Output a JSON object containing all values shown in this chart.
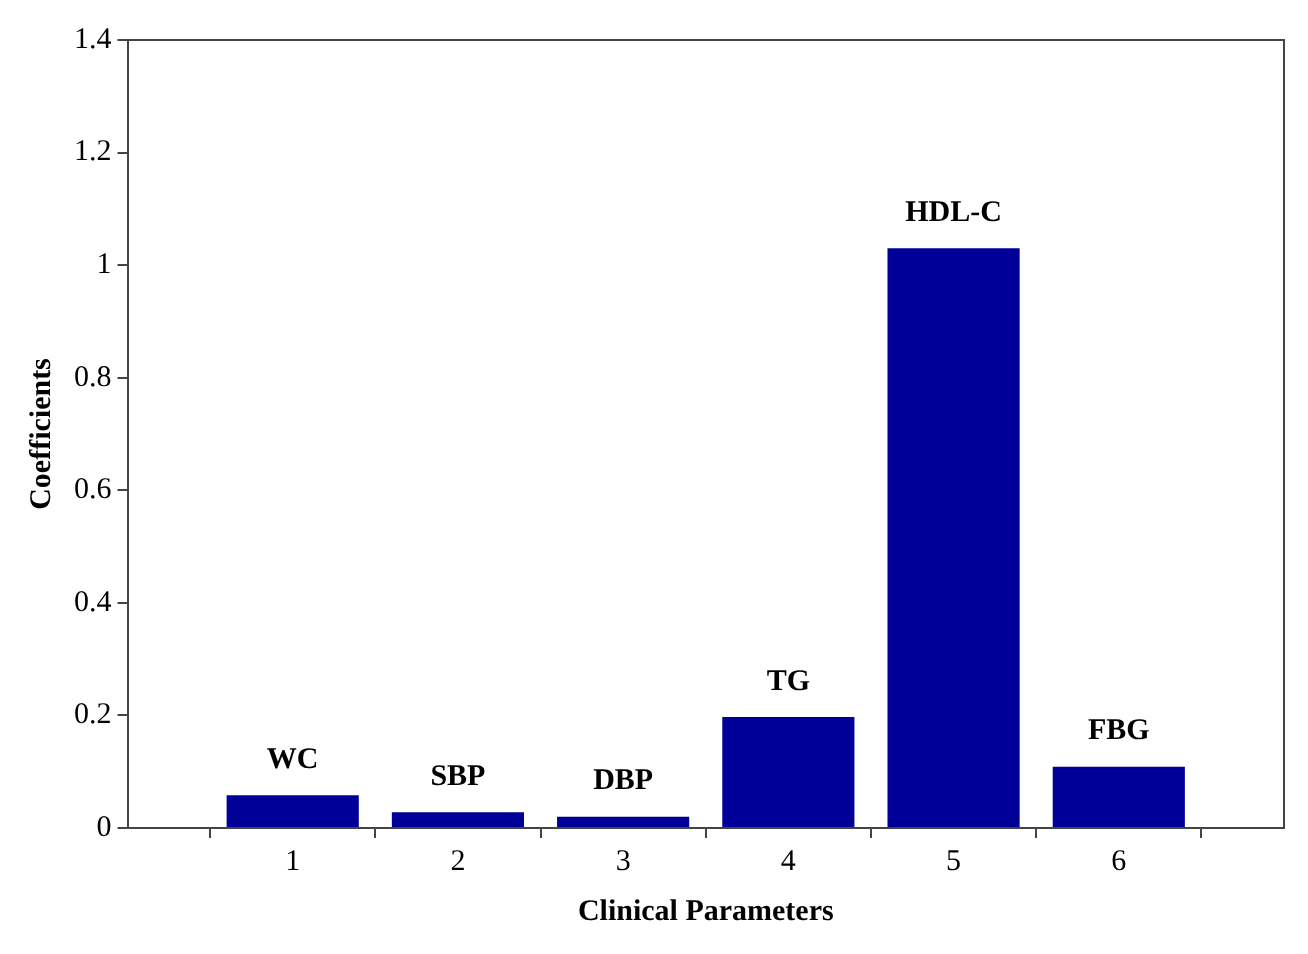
{
  "chart_data": {
    "type": "bar",
    "xlabel": "Clinical Parameters",
    "ylabel": "Coefficients",
    "x": [
      1,
      2,
      3,
      4,
      5,
      6
    ],
    "values": [
      0.058,
      0.028,
      0.02,
      0.197,
      1.03,
      0.109
    ],
    "color": "#000099",
    "xlim": [
      0,
      7
    ],
    "xticks": [
      1,
      2,
      3,
      4,
      5,
      6
    ],
    "ylim": [
      0,
      1.4
    ],
    "yticks": [
      0,
      0.2,
      0.4,
      0.6,
      0.8,
      1,
      1.2,
      1.4
    ],
    "annotations": [
      {
        "text": "WC",
        "x": 1,
        "y": 0.058
      },
      {
        "text": "SBP",
        "x": 2,
        "y": 0.028
      },
      {
        "text": "DBP",
        "x": 3,
        "y": 0.02
      },
      {
        "text": "TG",
        "x": 4,
        "y": 0.197
      },
      {
        "text": "HDL-C",
        "x": 5,
        "y": 1.03
      },
      {
        "text": "FBG",
        "x": 6,
        "y": 0.109
      }
    ],
    "grid": false,
    "legend": false
  }
}
